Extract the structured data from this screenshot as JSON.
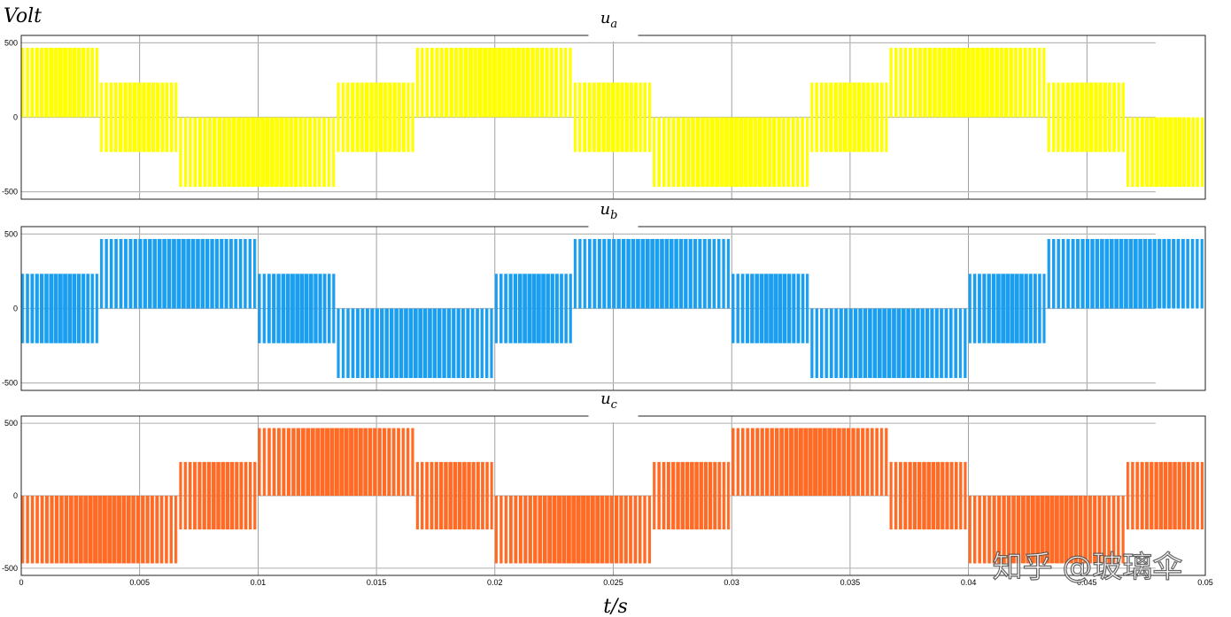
{
  "figure": {
    "y_unit_label": "Volt",
    "x_unit_label": "t/s",
    "watermark": "知乎 @玻璃伞"
  },
  "chart_data": [
    {
      "type": "line",
      "title": "u_a",
      "title_base": "u",
      "title_sub": "a",
      "color": "#ffff00",
      "xlim": [
        0,
        0.05
      ],
      "ylim": [
        -550,
        550
      ],
      "yticks": [
        -500,
        0,
        500
      ],
      "xticks": [
        0,
        0.005,
        0.01,
        0.015,
        0.02,
        0.025,
        0.03,
        0.035,
        0.04,
        0.045,
        0.05
      ],
      "grid": true,
      "carrier_period": 0.0002,
      "segments": [
        {
          "t0": 0,
          "t1": 0.00333,
          "low": 0,
          "high": 467
        },
        {
          "t0": 0.00333,
          "t1": 0.00667,
          "low": -233,
          "high": 233
        },
        {
          "t0": 0.00667,
          "t1": 0.01333,
          "low": -467,
          "high": 0
        },
        {
          "t0": 0.01333,
          "t1": 0.01667,
          "low": -233,
          "high": 233
        },
        {
          "t0": 0.01667,
          "t1": 0.02333,
          "low": 0,
          "high": 467
        },
        {
          "t0": 0.02333,
          "t1": 0.02667,
          "low": -233,
          "high": 233
        },
        {
          "t0": 0.02667,
          "t1": 0.03333,
          "low": -467,
          "high": 0
        },
        {
          "t0": 0.03333,
          "t1": 0.03667,
          "low": -233,
          "high": 233
        },
        {
          "t0": 0.03667,
          "t1": 0.04333,
          "low": 0,
          "high": 467
        },
        {
          "t0": 0.04333,
          "t1": 0.04667,
          "low": -233,
          "high": 233
        },
        {
          "t0": 0.04667,
          "t1": 0.05,
          "low": -467,
          "high": 0
        }
      ]
    },
    {
      "type": "line",
      "title": "u_b",
      "title_base": "u",
      "title_sub": "b",
      "color": "#1a9eef",
      "xlim": [
        0,
        0.05
      ],
      "ylim": [
        -550,
        550
      ],
      "yticks": [
        -500,
        0,
        500
      ],
      "xticks": [
        0,
        0.005,
        0.01,
        0.015,
        0.02,
        0.025,
        0.03,
        0.035,
        0.04,
        0.045,
        0.05
      ],
      "grid": true,
      "carrier_period": 0.0002,
      "segments": [
        {
          "t0": 0,
          "t1": 0.00333,
          "low": -233,
          "high": 233
        },
        {
          "t0": 0.00333,
          "t1": 0.01,
          "low": 0,
          "high": 467
        },
        {
          "t0": 0.01,
          "t1": 0.01333,
          "low": -233,
          "high": 233
        },
        {
          "t0": 0.01333,
          "t1": 0.02,
          "low": -467,
          "high": 0
        },
        {
          "t0": 0.02,
          "t1": 0.02333,
          "low": -233,
          "high": 233
        },
        {
          "t0": 0.02333,
          "t1": 0.03,
          "low": 0,
          "high": 467
        },
        {
          "t0": 0.03,
          "t1": 0.03333,
          "low": -233,
          "high": 233
        },
        {
          "t0": 0.03333,
          "t1": 0.04,
          "low": -467,
          "high": 0
        },
        {
          "t0": 0.04,
          "t1": 0.04333,
          "low": -233,
          "high": 233
        },
        {
          "t0": 0.04333,
          "t1": 0.05,
          "low": 0,
          "high": 467
        }
      ]
    },
    {
      "type": "line",
      "title": "u_c",
      "title_base": "u",
      "title_sub": "c",
      "color": "#ff6a24",
      "xlim": [
        0,
        0.05
      ],
      "ylim": [
        -550,
        550
      ],
      "yticks": [
        -500,
        0,
        500
      ],
      "xticks": [
        0,
        0.005,
        0.01,
        0.015,
        0.02,
        0.025,
        0.03,
        0.035,
        0.04,
        0.045,
        0.05
      ],
      "grid": true,
      "carrier_period": 0.0002,
      "segments": [
        {
          "t0": 0,
          "t1": 0.00667,
          "low": -467,
          "high": 0
        },
        {
          "t0": 0.00667,
          "t1": 0.01,
          "low": -233,
          "high": 233
        },
        {
          "t0": 0.01,
          "t1": 0.01667,
          "low": 0,
          "high": 467
        },
        {
          "t0": 0.01667,
          "t1": 0.02,
          "low": -233,
          "high": 233
        },
        {
          "t0": 0.02,
          "t1": 0.02667,
          "low": -467,
          "high": 0
        },
        {
          "t0": 0.02667,
          "t1": 0.03,
          "low": -233,
          "high": 233
        },
        {
          "t0": 0.03,
          "t1": 0.03667,
          "low": 0,
          "high": 467
        },
        {
          "t0": 0.03667,
          "t1": 0.04,
          "low": -233,
          "high": 233
        },
        {
          "t0": 0.04,
          "t1": 0.04667,
          "low": -467,
          "high": 0
        },
        {
          "t0": 0.04667,
          "t1": 0.05,
          "low": -233,
          "high": 233
        }
      ]
    }
  ]
}
